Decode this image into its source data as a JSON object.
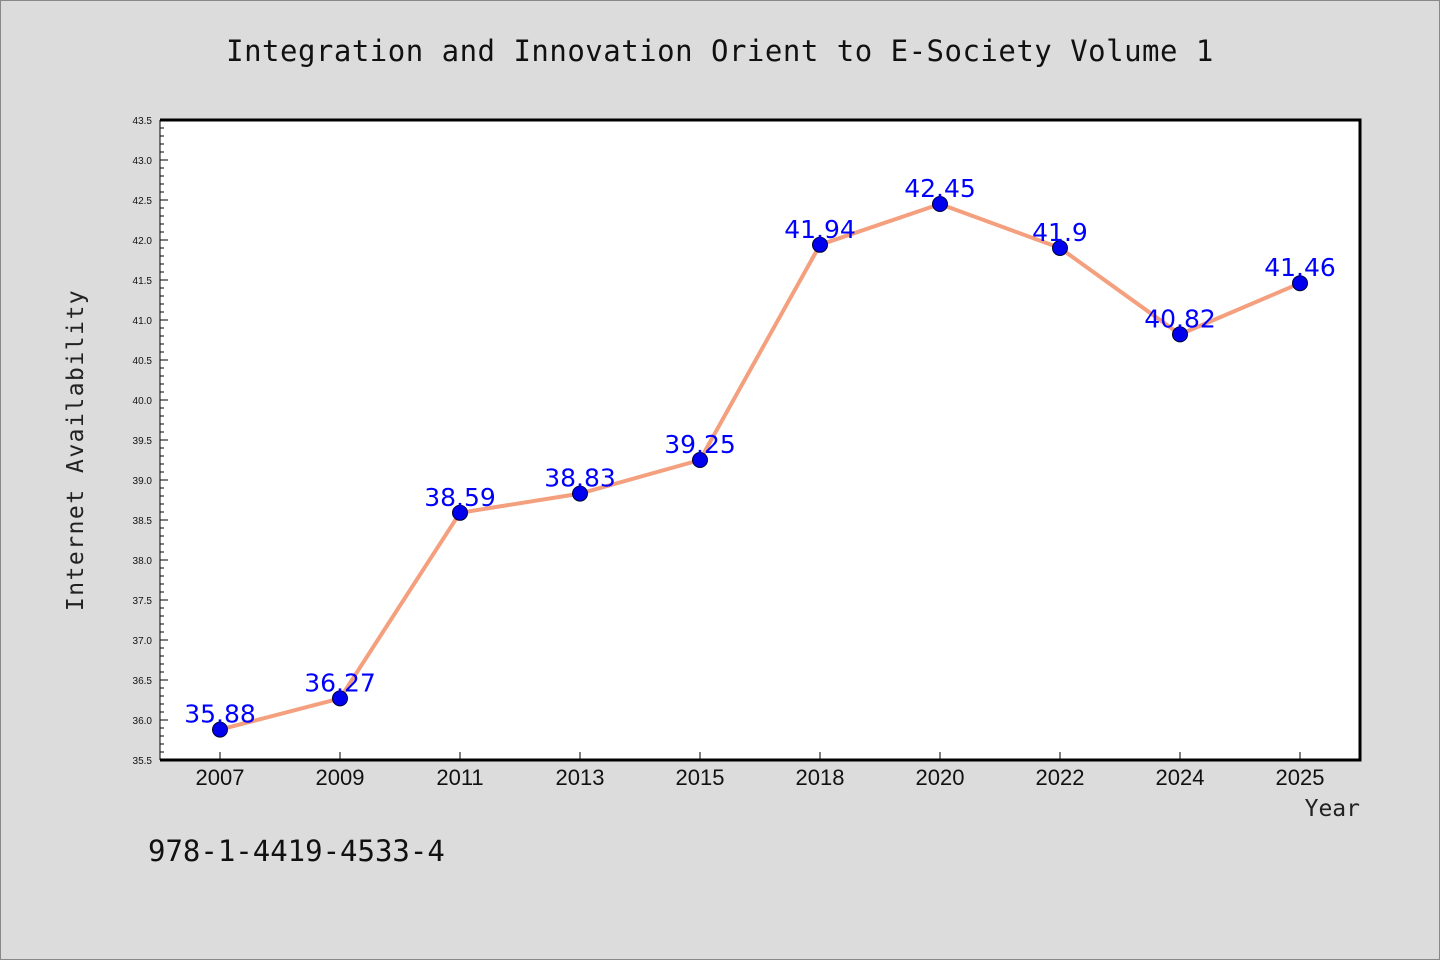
{
  "chart_data": {
    "type": "line",
    "title": "Integration and Innovation Orient to E-Society Volume 1",
    "xlabel": "Year",
    "ylabel": "Internet Availability",
    "categories": [
      "2007",
      "2009",
      "2011",
      "2013",
      "2015",
      "2018",
      "2020",
      "2022",
      "2024",
      "2025"
    ],
    "series": [
      {
        "values": [
          35.88,
          36.27,
          38.59,
          38.83,
          39.25,
          41.94,
          42.45,
          41.9,
          40.82,
          41.46
        ],
        "labels": [
          "35.88",
          "36.27",
          "38.59",
          "38.83",
          "39.25",
          "41.94",
          "42.45",
          "41.9",
          "40.82",
          "41.46"
        ],
        "line_color": "#f4a07e",
        "marker_color": "#0000ee"
      }
    ],
    "ylim": [
      35.5,
      43.5
    ],
    "yticks": [
      "35.5",
      "36.0",
      "36.5",
      "37.0",
      "37.5",
      "38.0",
      "38.5",
      "39.0",
      "39.5",
      "40.0",
      "40.5",
      "41.0",
      "41.5",
      "42.0",
      "42.5",
      "43.0",
      "43.5"
    ],
    "grid": false,
    "legend": "none",
    "label_color": "#0000ff"
  },
  "footer": {
    "isbn": "978-1-4419-4533-4"
  }
}
